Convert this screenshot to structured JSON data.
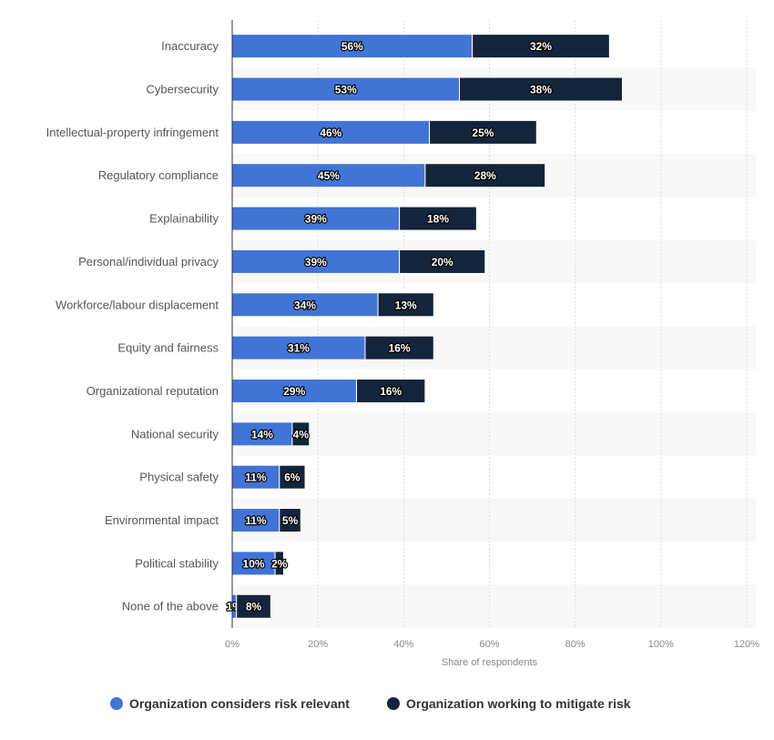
{
  "chart_data": {
    "type": "bar",
    "orientation": "horizontal",
    "stacked": true,
    "categories": [
      "Inaccuracy",
      "Cybersecurity",
      "Intellectual-property infringement",
      "Regulatory compliance",
      "Explainability",
      "Personal/individual privacy",
      "Workforce/labour displacement",
      "Equity and fairness",
      "Organizational reputation",
      "National security",
      "Physical safety",
      "Environmental impact",
      "Political stability",
      "None of the above"
    ],
    "series": [
      {
        "name": "Organization considers risk relevant",
        "color": "#4174d6",
        "values": [
          56,
          53,
          46,
          45,
          39,
          39,
          34,
          31,
          29,
          14,
          11,
          11,
          10,
          1
        ]
      },
      {
        "name": "Organization working to mitigate risk",
        "color": "#14243a",
        "values": [
          32,
          38,
          25,
          28,
          18,
          20,
          13,
          16,
          16,
          4,
          6,
          5,
          2,
          8
        ]
      }
    ],
    "xlabel": "Share of respondents",
    "xlim": [
      0,
      120
    ],
    "xticks": [
      "0%",
      "20%",
      "40%",
      "60%",
      "80%",
      "100%",
      "120%"
    ],
    "value_suffix": "%",
    "grid": true,
    "legend_position": "bottom"
  }
}
